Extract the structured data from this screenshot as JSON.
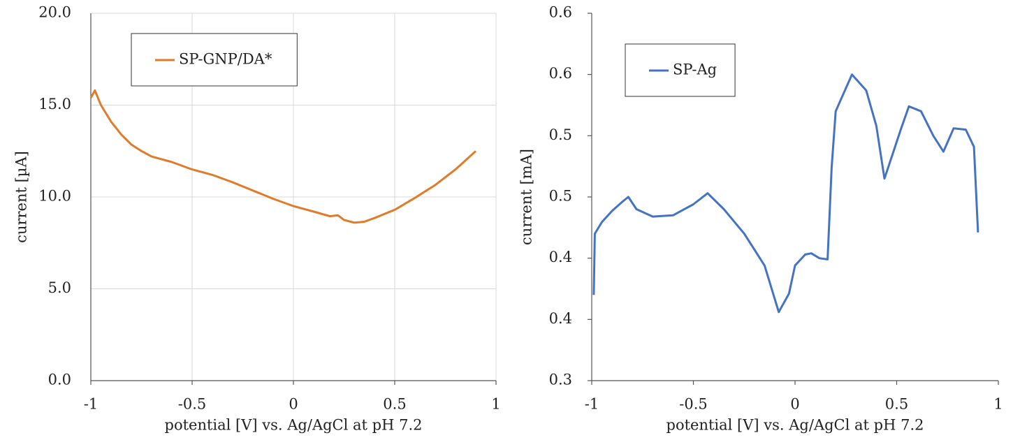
{
  "chart_data": [
    {
      "type": "line",
      "x_label": "potential [V] vs. Ag/AgCl at pH 7.2",
      "y_label": "current [µA]",
      "xlim": [
        -1,
        1
      ],
      "xticks": [
        -1,
        -0.5,
        0,
        0.5,
        1
      ],
      "ylim": [
        0,
        20
      ],
      "yticks": [
        {
          "value": 0,
          "label": "0.0"
        },
        {
          "value": 5,
          "label": "5.0"
        },
        {
          "value": 10,
          "label": "10.0"
        },
        {
          "value": 15,
          "label": "15.0"
        },
        {
          "value": 20,
          "label": "20.0"
        }
      ],
      "grid": true,
      "legend": "top-left",
      "series": [
        {
          "name": "SP-GNP/DA*",
          "color": "#e07b2a",
          "x": [
            -1,
            -0.98,
            -0.95,
            -0.9,
            -0.85,
            -0.8,
            -0.75,
            -0.7,
            -0.6,
            -0.5,
            -0.4,
            -0.3,
            -0.2,
            -0.1,
            0,
            0.1,
            0.18,
            0.22,
            0.25,
            0.3,
            0.35,
            0.4,
            0.5,
            0.6,
            0.7,
            0.8,
            0.9
          ],
          "values": [
            15.4,
            15.8,
            15.0,
            14.1,
            13.4,
            12.85,
            12.5,
            12.2,
            11.9,
            11.5,
            11.2,
            10.8,
            10.35,
            9.9,
            9.5,
            9.2,
            8.95,
            9.0,
            8.75,
            8.6,
            8.65,
            8.85,
            9.3,
            9.95,
            10.65,
            11.5,
            12.5
          ]
        }
      ]
    },
    {
      "type": "line",
      "x_label": "potential [V] vs. Ag/AgCl at pH 7.2",
      "y_label": "current [mA]",
      "xlim": [
        -1,
        1
      ],
      "xticks": [
        -1,
        -0.5,
        0,
        0.5,
        1
      ],
      "ylim": [
        0.3,
        0.6
      ],
      "yticks": [
        0.3,
        {
          "value": 0.35,
          "label": "0.4"
        },
        0.4,
        {
          "value": 0.45,
          "label": "0.5"
        },
        0.5,
        {
          "value": 0.55,
          "label": "0.6"
        },
        0.6
      ],
      "grid": false,
      "legend": "top-left",
      "series": [
        {
          "name": "SP-Ag",
          "color": "#4472c4",
          "x": [
            -0.99,
            -0.985,
            -0.95,
            -0.9,
            -0.85,
            -0.82,
            -0.78,
            -0.7,
            -0.6,
            -0.5,
            -0.43,
            -0.35,
            -0.25,
            -0.15,
            -0.08,
            -0.03,
            0,
            0.05,
            0.08,
            0.12,
            0.16,
            0.18,
            0.2,
            0.28,
            0.35,
            0.4,
            0.44,
            0.48,
            0.52,
            0.56,
            0.62,
            0.68,
            0.73,
            0.78,
            0.84,
            0.88,
            0.9
          ],
          "values": [
            0.37,
            0.42,
            0.4295,
            0.4386,
            0.446,
            0.45,
            0.44,
            0.434,
            0.435,
            0.444,
            0.453,
            0.44,
            0.42,
            0.394,
            0.356,
            0.371,
            0.394,
            0.403,
            0.404,
            0.4,
            0.399,
            0.474,
            0.52,
            0.55,
            0.537,
            0.508,
            0.465,
            0.485,
            0.505,
            0.524,
            0.52,
            0.5,
            0.487,
            0.506,
            0.505,
            0.491,
            0.421
          ]
        }
      ]
    }
  ]
}
